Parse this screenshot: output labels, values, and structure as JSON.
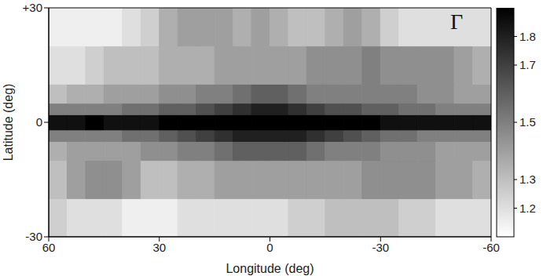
{
  "chart_data": {
    "type": "heatmap",
    "annotation": "Γ",
    "x_label": "Longitude (deg)",
    "y_label": "Latitude (deg)",
    "xlim": [
      60,
      -60
    ],
    "xticks": [
      60,
      30,
      0,
      -30,
      -60
    ],
    "ylim": [
      -30,
      30
    ],
    "yticks": [
      -30,
      0,
      {
        "value": 30,
        "label": "+30"
      }
    ],
    "x_edges": [
      60,
      55,
      50,
      45,
      40,
      35,
      30,
      25,
      20,
      15,
      10,
      5,
      0,
      -5,
      -10,
      -15,
      -20,
      -25,
      -30,
      -35,
      -40,
      -45,
      -50,
      -55,
      -60
    ],
    "y_edges": [
      -30,
      -20,
      -10,
      -5,
      -2,
      2,
      5,
      10,
      20,
      30
    ],
    "cells": [
      [
        1.25,
        1.2,
        1.2,
        1.2,
        1.15,
        1.15,
        1.15,
        1.2,
        1.2,
        1.2,
        1.2,
        1.2,
        1.2,
        1.25,
        1.25,
        1.3,
        1.3,
        1.3,
        1.3,
        1.25,
        1.25,
        1.2,
        1.2,
        1.2
      ],
      [
        1.3,
        1.4,
        1.45,
        1.45,
        1.4,
        1.3,
        1.3,
        1.35,
        1.35,
        1.4,
        1.4,
        1.4,
        1.4,
        1.4,
        1.4,
        1.4,
        1.4,
        1.45,
        1.45,
        1.45,
        1.45,
        1.4,
        1.4,
        1.35
      ],
      [
        1.35,
        1.4,
        1.4,
        1.4,
        1.4,
        1.45,
        1.45,
        1.5,
        1.5,
        1.55,
        1.6,
        1.6,
        1.6,
        1.6,
        1.55,
        1.5,
        1.5,
        1.5,
        1.45,
        1.45,
        1.45,
        1.4,
        1.4,
        1.4
      ],
      [
        1.5,
        1.5,
        1.5,
        1.5,
        1.55,
        1.55,
        1.6,
        1.65,
        1.7,
        1.75,
        1.8,
        1.8,
        1.8,
        1.8,
        1.75,
        1.7,
        1.65,
        1.6,
        1.55,
        1.55,
        1.5,
        1.5,
        1.5,
        1.5
      ],
      [
        1.85,
        1.85,
        1.9,
        1.85,
        1.85,
        1.85,
        1.9,
        1.9,
        1.9,
        1.9,
        1.9,
        1.9,
        1.9,
        1.9,
        1.9,
        1.9,
        1.9,
        1.9,
        1.85,
        1.85,
        1.85,
        1.85,
        1.85,
        1.85
      ],
      [
        1.5,
        1.5,
        1.5,
        1.5,
        1.55,
        1.55,
        1.6,
        1.6,
        1.65,
        1.7,
        1.75,
        1.8,
        1.8,
        1.75,
        1.7,
        1.65,
        1.65,
        1.6,
        1.6,
        1.55,
        1.55,
        1.5,
        1.5,
        1.5
      ],
      [
        1.3,
        1.35,
        1.35,
        1.4,
        1.4,
        1.4,
        1.45,
        1.45,
        1.5,
        1.5,
        1.55,
        1.6,
        1.6,
        1.55,
        1.5,
        1.5,
        1.5,
        1.5,
        1.5,
        1.5,
        1.45,
        1.45,
        1.4,
        1.4
      ],
      [
        1.2,
        1.2,
        1.25,
        1.3,
        1.3,
        1.3,
        1.35,
        1.35,
        1.35,
        1.4,
        1.4,
        1.4,
        1.4,
        1.4,
        1.45,
        1.45,
        1.45,
        1.5,
        1.45,
        1.45,
        1.45,
        1.45,
        1.4,
        1.35
      ],
      [
        1.15,
        1.15,
        1.15,
        1.15,
        1.2,
        1.25,
        1.35,
        1.4,
        1.4,
        1.4,
        1.35,
        1.4,
        1.35,
        1.3,
        1.3,
        1.35,
        1.4,
        1.35,
        1.25,
        1.2,
        1.2,
        1.2,
        1.2,
        1.2
      ]
    ],
    "colorbar_range": [
      1.1,
      1.9
    ],
    "colorbar_ticks": [
      1.2,
      1.3,
      1.5,
      1.7,
      1.8
    ]
  }
}
